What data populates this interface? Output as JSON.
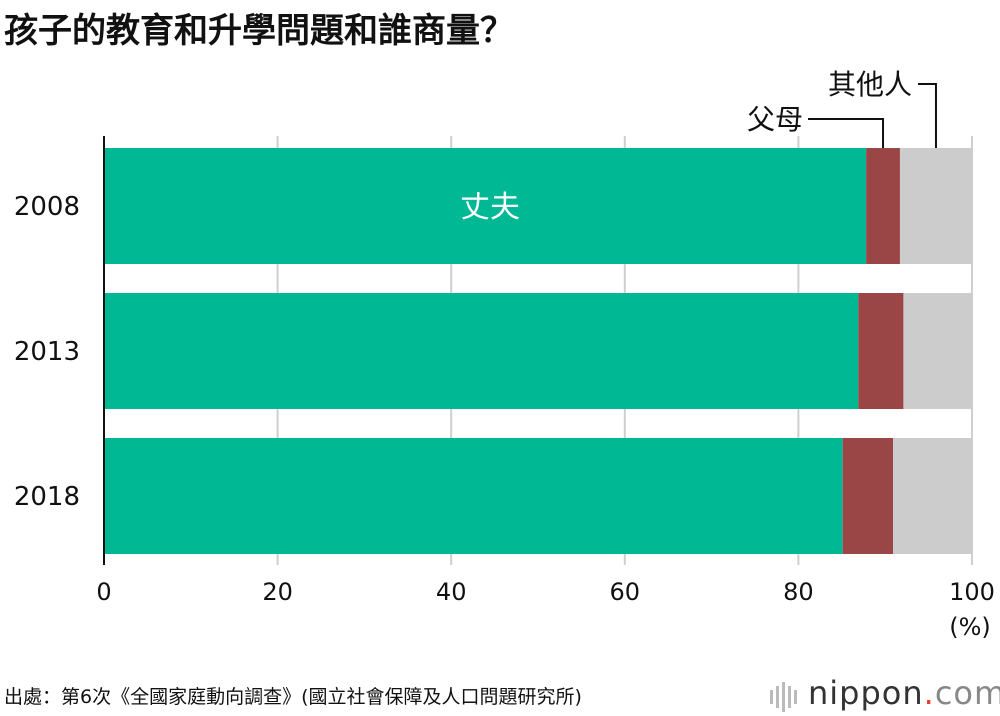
{
  "chart_data": {
    "type": "bar",
    "orientation": "horizontal",
    "stacked": true,
    "title": "孩子的教育和升學問題和誰商量？",
    "categories": [
      "2008",
      "2013",
      "2018"
    ],
    "series": [
      {
        "name": "丈夫",
        "values": [
          87.8,
          86.9,
          85.1
        ],
        "color": "#00b894"
      },
      {
        "name": "父母",
        "values": [
          3.9,
          5.2,
          5.8
        ],
        "color": "#9b4646"
      },
      {
        "name": "其他人",
        "values": [
          8.3,
          7.9,
          9.1
        ],
        "color": "#cccccc"
      }
    ],
    "xlim": [
      0,
      100
    ],
    "xticks": [
      "0",
      "20",
      "40",
      "60",
      "80",
      "100"
    ],
    "xlabel": "(%)",
    "grid": true,
    "legend": "inline-annotations"
  },
  "footer": {
    "source": "出處：第6次《全國家庭動向調查》(國立社會保障及人口問題研究所)",
    "logo": {
      "name": "nippon",
      "dot": ".",
      "tld": "com"
    }
  }
}
